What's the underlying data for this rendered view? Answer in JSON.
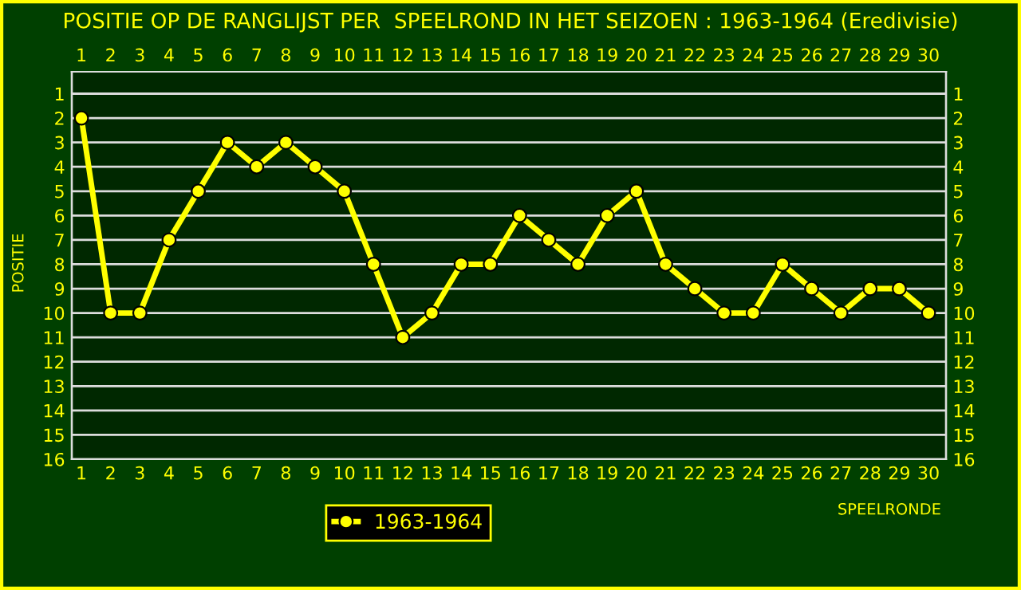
{
  "chart_data": {
    "type": "line",
    "title": "POSITIE OP DE RANGLIJST PER  SPEELROND IN HET SEIZOEN : 1963-1964 (Eredivisie)",
    "xlabel": "SPEELRONDE",
    "ylabel": "POSITIE",
    "x": [
      1,
      2,
      3,
      4,
      5,
      6,
      7,
      8,
      9,
      10,
      11,
      12,
      13,
      14,
      15,
      16,
      17,
      18,
      19,
      20,
      21,
      22,
      23,
      24,
      25,
      26,
      27,
      28,
      29,
      30
    ],
    "series": [
      {
        "name": "1963-1964",
        "color": "#ffff00",
        "values": [
          2,
          10,
          10,
          7,
          5,
          3,
          4,
          3,
          4,
          5,
          8,
          11,
          10,
          8,
          8,
          6,
          7,
          8,
          6,
          5,
          8,
          9,
          10,
          10,
          8,
          9,
          10,
          9,
          9,
          10
        ]
      }
    ],
    "xlim": [
      0.67,
      30.6
    ],
    "xticks": [
      1,
      2,
      3,
      4,
      5,
      6,
      7,
      8,
      9,
      10,
      11,
      12,
      13,
      14,
      15,
      16,
      17,
      18,
      19,
      20,
      21,
      22,
      23,
      24,
      25,
      26,
      27,
      28,
      29,
      30
    ],
    "x2lim": [
      0.67,
      30.6
    ],
    "x2ticks": [
      1,
      2,
      3,
      4,
      5,
      6,
      7,
      8,
      9,
      10,
      11,
      12,
      13,
      14,
      15,
      16,
      17,
      18,
      19,
      20,
      21,
      22,
      23,
      24,
      25,
      26,
      27,
      28,
      29,
      30
    ],
    "ylim": [
      16,
      0.1
    ],
    "yticks": [
      1,
      2,
      3,
      4,
      5,
      6,
      7,
      8,
      9,
      10,
      11,
      12,
      13,
      14,
      15,
      16
    ],
    "y2lim": [
      16,
      0.1
    ],
    "y2ticks": [
      1,
      2,
      3,
      4,
      5,
      6,
      7,
      8,
      9,
      10,
      11,
      12,
      13,
      14,
      15,
      16
    ],
    "grid": "y",
    "legend": "bottom",
    "marker": "circle",
    "line_style": "solid"
  }
}
